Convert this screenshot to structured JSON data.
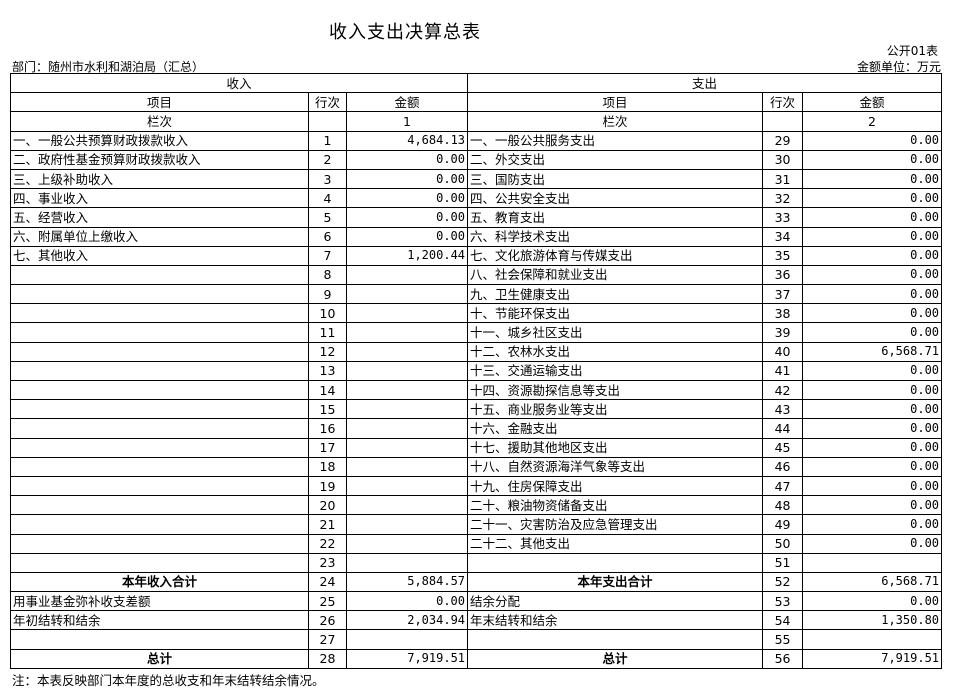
{
  "title": "收入支出决算总表",
  "form_no": "公开01表",
  "department": "部门：随州市水利和湖泊局（汇总）",
  "unit": "金额单位：万元",
  "header": {
    "income": "收入",
    "expense": "支出",
    "item": "项目",
    "row_no": "行次",
    "amount": "金额",
    "column_no": "栏次",
    "income_col": "1",
    "expense_col": "2"
  },
  "rows": [
    {
      "l": "一、一般公共预算财政拨款收入",
      "ln": "1",
      "la": "4,684.13",
      "r": "一、一般公共服务支出",
      "rn": "29",
      "ra": "0.00"
    },
    {
      "l": "二、政府性基金预算财政拨款收入",
      "ln": "2",
      "la": "0.00",
      "r": "二、外交支出",
      "rn": "30",
      "ra": "0.00"
    },
    {
      "l": "三、上级补助收入",
      "ln": "3",
      "la": "0.00",
      "r": "三、国防支出",
      "rn": "31",
      "ra": "0.00"
    },
    {
      "l": "四、事业收入",
      "ln": "4",
      "la": "0.00",
      "r": "四、公共安全支出",
      "rn": "32",
      "ra": "0.00"
    },
    {
      "l": "五、经营收入",
      "ln": "5",
      "la": "0.00",
      "r": "五、教育支出",
      "rn": "33",
      "ra": "0.00"
    },
    {
      "l": "六、附属单位上缴收入",
      "ln": "6",
      "la": "0.00",
      "r": "六、科学技术支出",
      "rn": "34",
      "ra": "0.00"
    },
    {
      "l": "七、其他收入",
      "ln": "7",
      "la": "1,200.44",
      "r": "七、文化旅游体育与传媒支出",
      "rn": "35",
      "ra": "0.00"
    },
    {
      "l": "",
      "ln": "8",
      "la": "",
      "r": "八、社会保障和就业支出",
      "rn": "36",
      "ra": "0.00"
    },
    {
      "l": "",
      "ln": "9",
      "la": "",
      "r": "九、卫生健康支出",
      "rn": "37",
      "ra": "0.00"
    },
    {
      "l": "",
      "ln": "10",
      "la": "",
      "r": "十、节能环保支出",
      "rn": "38",
      "ra": "0.00"
    },
    {
      "l": "",
      "ln": "11",
      "la": "",
      "r": "十一、城乡社区支出",
      "rn": "39",
      "ra": "0.00"
    },
    {
      "l": "",
      "ln": "12",
      "la": "",
      "r": "十二、农林水支出",
      "rn": "40",
      "ra": "6,568.71"
    },
    {
      "l": "",
      "ln": "13",
      "la": "",
      "r": "十三、交通运输支出",
      "rn": "41",
      "ra": "0.00"
    },
    {
      "l": "",
      "ln": "14",
      "la": "",
      "r": "十四、资源勘探信息等支出",
      "rn": "42",
      "ra": "0.00"
    },
    {
      "l": "",
      "ln": "15",
      "la": "",
      "r": "十五、商业服务业等支出",
      "rn": "43",
      "ra": "0.00"
    },
    {
      "l": "",
      "ln": "16",
      "la": "",
      "r": "十六、金融支出",
      "rn": "44",
      "ra": "0.00"
    },
    {
      "l": "",
      "ln": "17",
      "la": "",
      "r": "十七、援助其他地区支出",
      "rn": "45",
      "ra": "0.00"
    },
    {
      "l": "",
      "ln": "18",
      "la": "",
      "r": "十八、自然资源海洋气象等支出",
      "rn": "46",
      "ra": "0.00"
    },
    {
      "l": "",
      "ln": "19",
      "la": "",
      "r": "十九、住房保障支出",
      "rn": "47",
      "ra": "0.00"
    },
    {
      "l": "",
      "ln": "20",
      "la": "",
      "r": "二十、粮油物资储备支出",
      "rn": "48",
      "ra": "0.00"
    },
    {
      "l": "",
      "ln": "21",
      "la": "",
      "r": "二十一、灾害防治及应急管理支出",
      "rn": "49",
      "ra": "0.00"
    },
    {
      "l": "",
      "ln": "22",
      "la": "",
      "r": "二十二、其他支出",
      "rn": "50",
      "ra": "0.00"
    },
    {
      "l": "",
      "ln": "23",
      "la": "",
      "r": "",
      "rn": "51",
      "ra": ""
    },
    {
      "l": "本年收入合计",
      "ln": "24",
      "la": "5,884.57",
      "r": "本年支出合计",
      "rn": "52",
      "ra": "6,568.71",
      "bold": true
    },
    {
      "l": "用事业基金弥补收支差额",
      "ln": "25",
      "la": "0.00",
      "r": "结余分配",
      "rn": "53",
      "ra": "0.00"
    },
    {
      "l": "年初结转和结余",
      "ln": "26",
      "la": "2,034.94",
      "r": "年末结转和结余",
      "rn": "54",
      "ra": "1,350.80"
    },
    {
      "l": "",
      "ln": "27",
      "la": "",
      "r": "",
      "rn": "55",
      "ra": ""
    },
    {
      "l": "总计",
      "ln": "28",
      "la": "7,919.51",
      "r": "总计",
      "rn": "56",
      "ra": "7,919.51",
      "bold": true
    }
  ],
  "note": "注：本表反映部门本年度的总收支和年末结转结余情况。"
}
